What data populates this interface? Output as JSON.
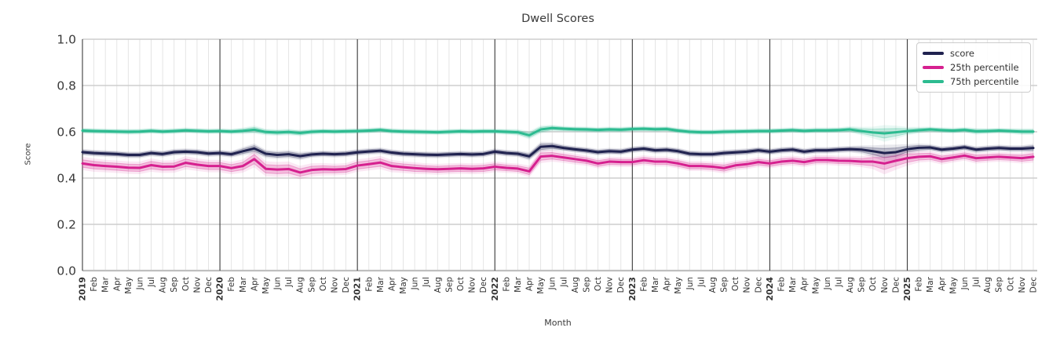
{
  "chart_data": {
    "type": "line",
    "title": "Dwell Scores",
    "xlabel": "Month",
    "ylabel": "Score",
    "ylim": [
      0.0,
      1.0
    ],
    "yticks": [
      "0.0",
      "0.2",
      "0.4",
      "0.6",
      "0.8",
      "1.0"
    ],
    "grid": true,
    "legend_position": "upper right",
    "year_tick_indices": [
      0,
      12,
      24,
      36,
      48,
      60,
      72
    ],
    "months": [
      "2019",
      "Feb",
      "Mar",
      "Apr",
      "May",
      "Jun",
      "Jul",
      "Aug",
      "Sep",
      "Oct",
      "Nov",
      "Dec",
      "2020",
      "Feb",
      "Mar",
      "Apr",
      "May",
      "Jun",
      "Jul",
      "Aug",
      "Sep",
      "Oct",
      "Nov",
      "Dec",
      "2021",
      "Feb",
      "Mar",
      "Apr",
      "May",
      "Jun",
      "Jul",
      "Aug",
      "Sep",
      "Oct",
      "Nov",
      "Dec",
      "2022",
      "Feb",
      "Mar",
      "Apr",
      "May",
      "Jun",
      "Jul",
      "Aug",
      "Sep",
      "Oct",
      "Nov",
      "Dec",
      "2023",
      "Feb",
      "Mar",
      "Apr",
      "May",
      "Jun",
      "Jul",
      "Aug",
      "Sep",
      "Oct",
      "Nov",
      "Dec",
      "2024",
      "Feb",
      "Mar",
      "Apr",
      "May",
      "Jun",
      "Jul",
      "Aug",
      "Sep",
      "Oct",
      "Nov",
      "Dec",
      "2025",
      "Feb",
      "Mar",
      "Apr",
      "May",
      "Jun",
      "Jul",
      "Aug",
      "Sep",
      "Oct",
      "Nov",
      "Dec"
    ],
    "series": [
      {
        "name": "score",
        "color": "#20224f",
        "values": [
          0.512,
          0.508,
          0.506,
          0.504,
          0.5,
          0.5,
          0.508,
          0.504,
          0.512,
          0.514,
          0.512,
          0.506,
          0.508,
          0.503,
          0.516,
          0.528,
          0.505,
          0.5,
          0.503,
          0.495,
          0.502,
          0.505,
          0.503,
          0.505,
          0.511,
          0.515,
          0.518,
          0.51,
          0.505,
          0.503,
          0.501,
          0.5,
          0.502,
          0.504,
          0.502,
          0.504,
          0.514,
          0.508,
          0.505,
          0.494,
          0.535,
          0.538,
          0.53,
          0.524,
          0.519,
          0.512,
          0.516,
          0.514,
          0.523,
          0.527,
          0.52,
          0.522,
          0.516,
          0.505,
          0.503,
          0.503,
          0.508,
          0.511,
          0.514,
          0.52,
          0.514,
          0.52,
          0.523,
          0.514,
          0.52,
          0.52,
          0.523,
          0.525,
          0.523,
          0.516,
          0.508,
          0.512,
          0.525,
          0.531,
          0.532,
          0.523,
          0.527,
          0.533,
          0.523,
          0.527,
          0.53,
          0.527,
          0.527,
          0.53
        ],
        "band": [
          0.008,
          0.008,
          0.008,
          0.008,
          0.008,
          0.008,
          0.008,
          0.008,
          0.008,
          0.008,
          0.008,
          0.008,
          0.008,
          0.008,
          0.01,
          0.012,
          0.01,
          0.01,
          0.01,
          0.01,
          0.008,
          0.008,
          0.008,
          0.008,
          0.008,
          0.008,
          0.008,
          0.008,
          0.008,
          0.008,
          0.008,
          0.008,
          0.008,
          0.008,
          0.008,
          0.008,
          0.008,
          0.008,
          0.008,
          0.01,
          0.012,
          0.01,
          0.008,
          0.008,
          0.008,
          0.008,
          0.008,
          0.008,
          0.008,
          0.008,
          0.008,
          0.008,
          0.008,
          0.008,
          0.008,
          0.008,
          0.008,
          0.008,
          0.008,
          0.008,
          0.008,
          0.008,
          0.008,
          0.008,
          0.008,
          0.008,
          0.008,
          0.008,
          0.01,
          0.014,
          0.02,
          0.018,
          0.012,
          0.01,
          0.008,
          0.008,
          0.008,
          0.008,
          0.008,
          0.008,
          0.008,
          0.008,
          0.008,
          0.01
        ]
      },
      {
        "name": "25th percentile",
        "color": "#d6208f",
        "values": [
          0.463,
          0.456,
          0.452,
          0.449,
          0.445,
          0.444,
          0.456,
          0.449,
          0.45,
          0.466,
          0.458,
          0.452,
          0.452,
          0.443,
          0.452,
          0.482,
          0.44,
          0.437,
          0.439,
          0.424,
          0.435,
          0.438,
          0.437,
          0.439,
          0.454,
          0.46,
          0.467,
          0.452,
          0.447,
          0.443,
          0.44,
          0.438,
          0.44,
          0.442,
          0.44,
          0.442,
          0.449,
          0.444,
          0.441,
          0.429,
          0.493,
          0.496,
          0.489,
          0.482,
          0.475,
          0.463,
          0.471,
          0.469,
          0.469,
          0.477,
          0.471,
          0.471,
          0.463,
          0.452,
          0.452,
          0.449,
          0.443,
          0.455,
          0.46,
          0.469,
          0.463,
          0.471,
          0.475,
          0.469,
          0.478,
          0.478,
          0.475,
          0.474,
          0.471,
          0.471,
          0.463,
          0.475,
          0.486,
          0.492,
          0.494,
          0.482,
          0.489,
          0.497,
          0.486,
          0.489,
          0.492,
          0.489,
          0.486,
          0.492
        ],
        "band": [
          0.016,
          0.016,
          0.015,
          0.015,
          0.015,
          0.015,
          0.016,
          0.015,
          0.015,
          0.016,
          0.015,
          0.015,
          0.015,
          0.015,
          0.016,
          0.02,
          0.018,
          0.018,
          0.018,
          0.016,
          0.016,
          0.015,
          0.014,
          0.014,
          0.015,
          0.015,
          0.016,
          0.015,
          0.014,
          0.014,
          0.013,
          0.013,
          0.013,
          0.013,
          0.013,
          0.013,
          0.013,
          0.012,
          0.012,
          0.014,
          0.016,
          0.014,
          0.013,
          0.013,
          0.012,
          0.012,
          0.012,
          0.012,
          0.012,
          0.012,
          0.012,
          0.012,
          0.012,
          0.012,
          0.012,
          0.012,
          0.013,
          0.012,
          0.012,
          0.012,
          0.012,
          0.012,
          0.012,
          0.012,
          0.012,
          0.012,
          0.012,
          0.012,
          0.013,
          0.018,
          0.026,
          0.022,
          0.018,
          0.014,
          0.013,
          0.013,
          0.012,
          0.012,
          0.013,
          0.012,
          0.012,
          0.012,
          0.013,
          0.014
        ]
      },
      {
        "name": "75th percentile",
        "color": "#2cbb90",
        "values": [
          0.605,
          0.603,
          0.602,
          0.601,
          0.6,
          0.601,
          0.604,
          0.601,
          0.603,
          0.606,
          0.604,
          0.602,
          0.603,
          0.601,
          0.604,
          0.609,
          0.599,
          0.597,
          0.599,
          0.595,
          0.6,
          0.602,
          0.601,
          0.602,
          0.603,
          0.605,
          0.608,
          0.603,
          0.601,
          0.6,
          0.599,
          0.598,
          0.6,
          0.602,
          0.601,
          0.602,
          0.602,
          0.6,
          0.598,
          0.585,
          0.61,
          0.616,
          0.613,
          0.611,
          0.61,
          0.608,
          0.61,
          0.609,
          0.612,
          0.613,
          0.611,
          0.612,
          0.605,
          0.6,
          0.598,
          0.598,
          0.6,
          0.601,
          0.602,
          0.603,
          0.603,
          0.605,
          0.607,
          0.604,
          0.606,
          0.606,
          0.607,
          0.61,
          0.603,
          0.597,
          0.593,
          0.598,
          0.603,
          0.607,
          0.61,
          0.607,
          0.605,
          0.608,
          0.602,
          0.603,
          0.605,
          0.603,
          0.601,
          0.601
        ],
        "band": [
          0.007,
          0.007,
          0.007,
          0.007,
          0.007,
          0.007,
          0.007,
          0.007,
          0.007,
          0.007,
          0.007,
          0.007,
          0.007,
          0.007,
          0.008,
          0.01,
          0.008,
          0.008,
          0.008,
          0.008,
          0.007,
          0.007,
          0.007,
          0.007,
          0.007,
          0.007,
          0.007,
          0.007,
          0.007,
          0.007,
          0.007,
          0.007,
          0.007,
          0.007,
          0.007,
          0.007,
          0.007,
          0.007,
          0.008,
          0.01,
          0.01,
          0.008,
          0.007,
          0.007,
          0.007,
          0.007,
          0.007,
          0.007,
          0.007,
          0.007,
          0.007,
          0.007,
          0.007,
          0.007,
          0.007,
          0.007,
          0.007,
          0.007,
          0.007,
          0.007,
          0.007,
          0.007,
          0.007,
          0.007,
          0.007,
          0.007,
          0.007,
          0.008,
          0.01,
          0.014,
          0.02,
          0.016,
          0.01,
          0.008,
          0.007,
          0.007,
          0.007,
          0.007,
          0.008,
          0.007,
          0.007,
          0.007,
          0.008,
          0.008
        ]
      }
    ],
    "colors": {
      "text": "#3a3a3a",
      "tick_label": "#333333",
      "grid_minor": "#e2e2e2",
      "grid_major": "#cdcdcd",
      "bottom_spine": "#bfbfbf",
      "year_line": "#3c3c3c",
      "legend_border": "#cccccc"
    }
  }
}
